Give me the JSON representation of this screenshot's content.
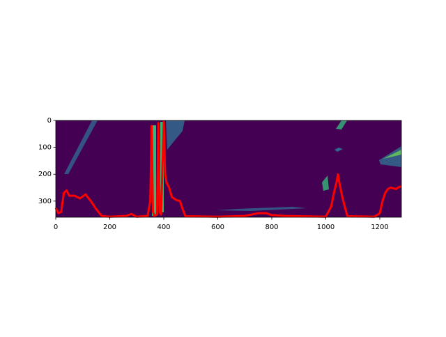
{
  "chart_data": {
    "type": "line",
    "image_color": "#440154",
    "x": [
      0,
      10,
      20,
      30,
      40,
      50,
      70,
      90,
      110,
      130,
      150,
      170,
      200,
      260,
      280,
      300,
      340,
      350,
      355,
      360,
      365,
      375,
      380,
      385,
      390,
      400,
      405,
      410,
      420,
      430,
      445,
      460,
      470,
      480,
      600,
      660,
      700,
      750,
      780,
      800,
      850,
      900,
      1000,
      1020,
      1030,
      1040,
      1045,
      1050,
      1060,
      1070,
      1080,
      1180,
      1200,
      1210,
      1220,
      1230,
      1240,
      1260,
      1270,
      1280
    ],
    "series": [
      {
        "color": "#ff0000",
        "values": [
          325,
          345,
          340,
          270,
          260,
          280,
          280,
          290,
          275,
          300,
          330,
          355,
          358,
          355,
          348,
          358,
          355,
          300,
          20,
          340,
          355,
          350,
          10,
          340,
          350,
          5,
          200,
          230,
          250,
          285,
          295,
          300,
          330,
          356,
          358,
          356,
          355,
          345,
          345,
          352,
          355,
          356,
          358,
          320,
          270,
          230,
          200,
          230,
          280,
          320,
          356,
          358,
          345,
          300,
          270,
          255,
          250,
          255,
          248,
          245
        ]
      }
    ],
    "xlim": [
      0,
      1280
    ],
    "ylim": [
      360,
      0
    ],
    "xticks": [
      0,
      200,
      400,
      600,
      800,
      1000,
      1200
    ],
    "yticks": [
      0,
      100,
      200,
      300
    ]
  }
}
